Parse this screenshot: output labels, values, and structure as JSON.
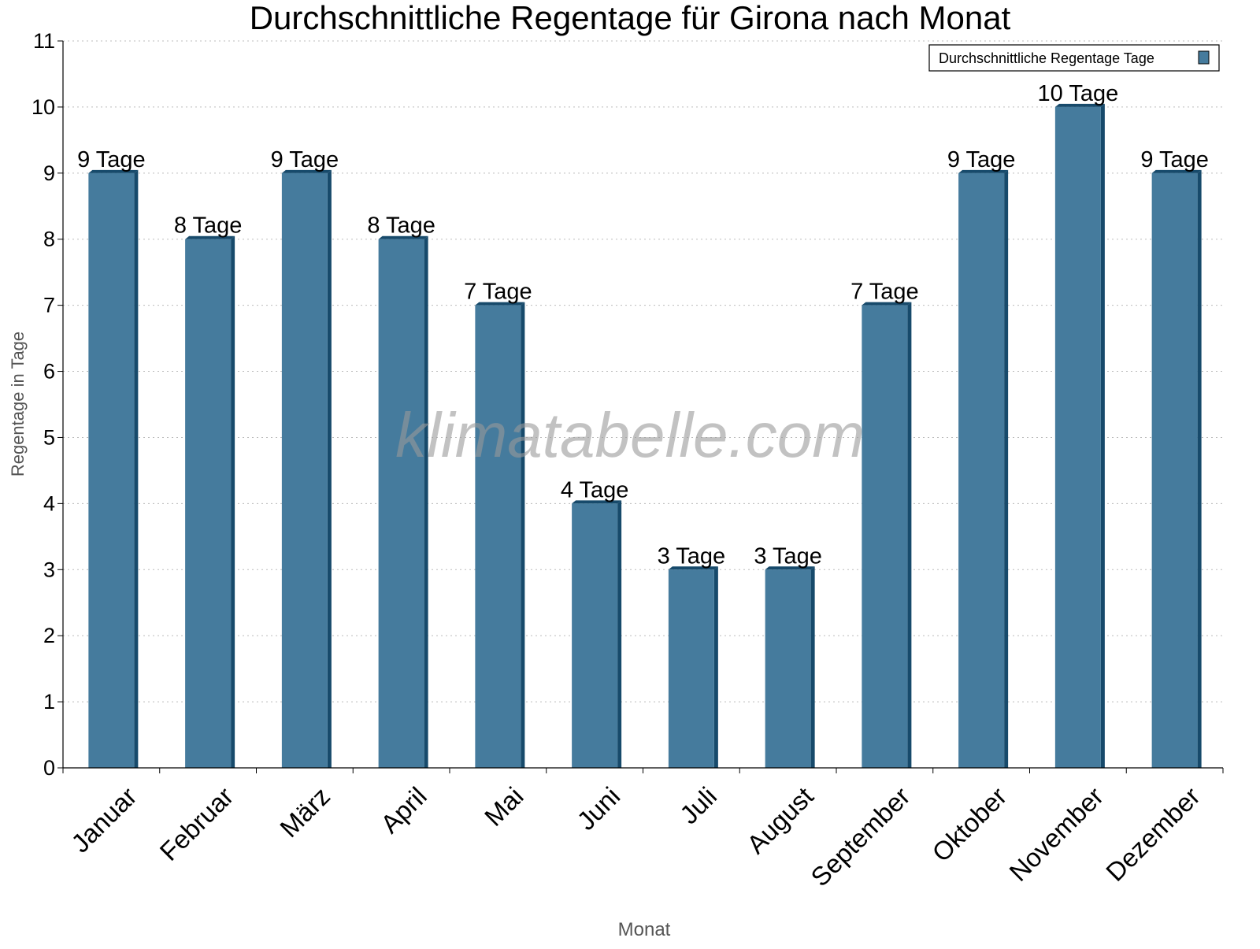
{
  "chart_data": {
    "type": "bar",
    "title": "Durchschnittliche Regentage für Girona nach Monat",
    "xlabel": "Monat",
    "ylabel": "Regentage in Tage",
    "ylim": [
      0,
      11
    ],
    "yticks": [
      0,
      1,
      2,
      3,
      4,
      5,
      6,
      7,
      8,
      9,
      10,
      11
    ],
    "grid": "horizontal dotted",
    "legend_placement": "top-right",
    "categories": [
      "Januar",
      "Februar",
      "März",
      "April",
      "Mai",
      "Juni",
      "Juli",
      "August",
      "September",
      "Oktober",
      "November",
      "Dezember"
    ],
    "series": [
      {
        "name": "Durchschnittliche Regentage Tage",
        "values": [
          9,
          8,
          9,
          8,
          7,
          4,
          3,
          3,
          7,
          9,
          10,
          9
        ],
        "color": "#457b9d",
        "side_color": "#174a6b"
      }
    ],
    "data_labels": [
      "9 Tage",
      "8 Tage",
      "9 Tage",
      "8 Tage",
      "7 Tage",
      "4 Tage",
      "3 Tage",
      "3 Tage",
      "7 Tage",
      "9 Tage",
      "10 Tage",
      "9 Tage"
    ],
    "watermark": "klimatabelle.com"
  }
}
